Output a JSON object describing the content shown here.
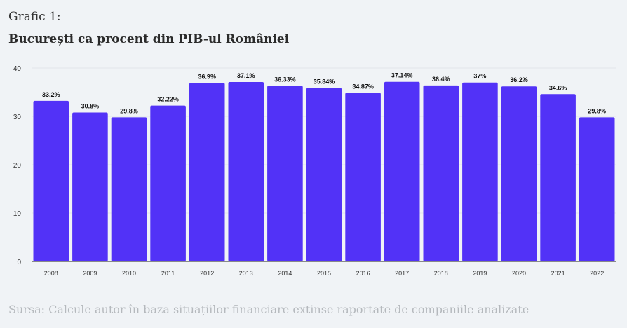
{
  "header": {
    "kicker": "Grafic 1:",
    "title": "București ca procent din PIB-ul României"
  },
  "footer": {
    "source": "Sursa: Calcule autor în baza situațiilor financiare extinse raportate de companiile analizate"
  },
  "colors": {
    "bar": "#5232f7",
    "background": "#f0f3f6",
    "grid": "#e2e5ea"
  },
  "chart_data": {
    "type": "bar",
    "title": "București ca procent din PIB-ul României",
    "xlabel": "",
    "ylabel": "",
    "ylim": [
      0,
      40
    ],
    "yticks": [
      0,
      10,
      20,
      30,
      40
    ],
    "grid": true,
    "categories": [
      "2008",
      "2009",
      "2010",
      "2011",
      "2012",
      "2013",
      "2014",
      "2015",
      "2016",
      "2017",
      "2018",
      "2019",
      "2020",
      "2021",
      "2022"
    ],
    "values": [
      33.2,
      30.8,
      29.8,
      32.22,
      36.9,
      37.1,
      36.33,
      35.84,
      34.87,
      37.14,
      36.4,
      37,
      36.2,
      34.6,
      29.8
    ],
    "labels": [
      "33.2%",
      "30.8%",
      "29.8%",
      "32.22%",
      "36.9%",
      "37.1%",
      "36.33%",
      "35.84%",
      "34.87%",
      "37.14%",
      "36.4%",
      "37%",
      "36.2%",
      "34.6%",
      "29.8%"
    ]
  }
}
